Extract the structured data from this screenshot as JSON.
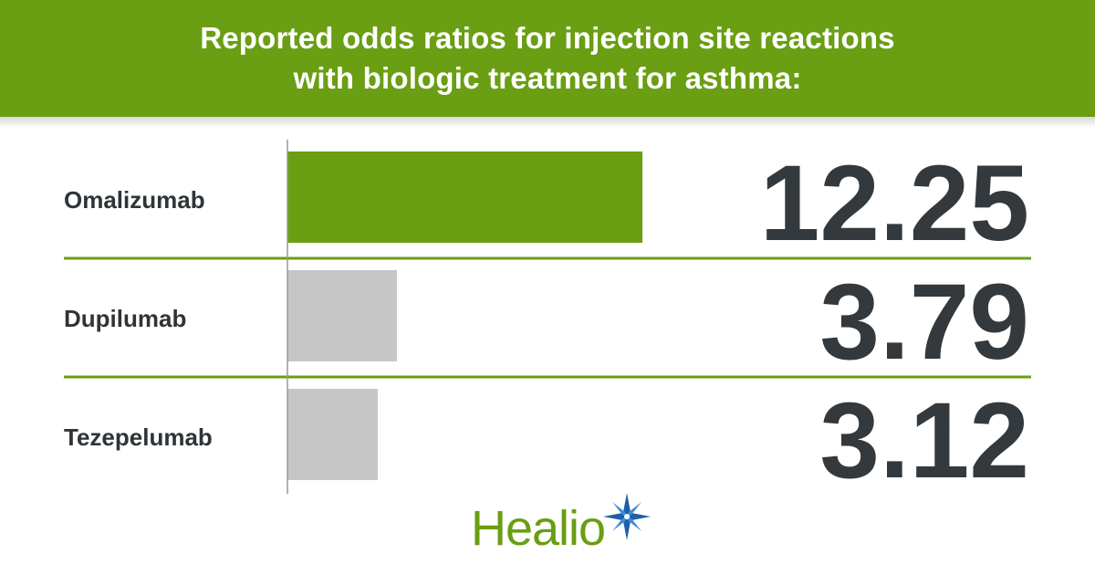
{
  "header": {
    "title_line1": "Reported odds ratios for injection site reactions",
    "title_line2": "with biologic treatment for asthma:"
  },
  "colors": {
    "brand_green": "#6a9e13",
    "bar_highlight": "#6a9e13",
    "bar_default": "#c6c6c6",
    "text_dark": "#33393c"
  },
  "chart_data": {
    "type": "bar",
    "orientation": "horizontal",
    "title": "Reported odds ratios for injection site reactions with biologic treatment for asthma:",
    "categories": [
      "Omalizumab",
      "Dupilumab",
      "Tezepelumab"
    ],
    "values": [
      12.25,
      3.79,
      3.12
    ],
    "value_labels": [
      "12.25",
      "3.79",
      "3.12"
    ],
    "highlight": "Omalizumab",
    "xlim": [
      0,
      12.25
    ],
    "grid": false,
    "legend": "none"
  },
  "logo": {
    "text": "Healio",
    "icon": "star-burst-icon"
  }
}
